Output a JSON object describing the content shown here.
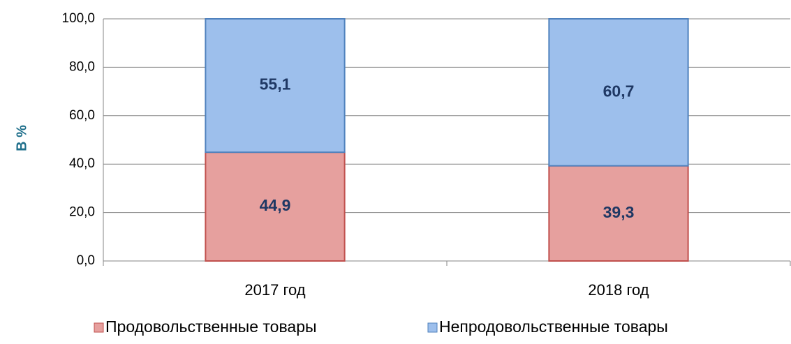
{
  "chart_data": {
    "type": "stacked_bar",
    "y_label": "В %",
    "categories": [
      "2017 год",
      "2018 год"
    ],
    "series": [
      {
        "name": "Продовольственные товары",
        "color": "#e6a09e",
        "values": [
          44.9,
          39.3
        ],
        "value_labels": [
          "44,9",
          "39,3"
        ]
      },
      {
        "name": "Непродовольственные товары",
        "color": "#9dbfec",
        "values": [
          55.1,
          60.7
        ],
        "value_labels": [
          "55,1",
          "60,7"
        ]
      }
    ],
    "ylim": [
      0,
      100
    ],
    "yticks": [
      {
        "value": 0,
        "label": "0,0"
      },
      {
        "value": 20,
        "label": "20,0"
      },
      {
        "value": 40,
        "label": "40,0"
      },
      {
        "value": 60,
        "label": "60,0"
      },
      {
        "value": 80,
        "label": "80,0"
      },
      {
        "value": 100,
        "label": "100,0"
      }
    ],
    "grid": true,
    "legend": "bottom"
  }
}
